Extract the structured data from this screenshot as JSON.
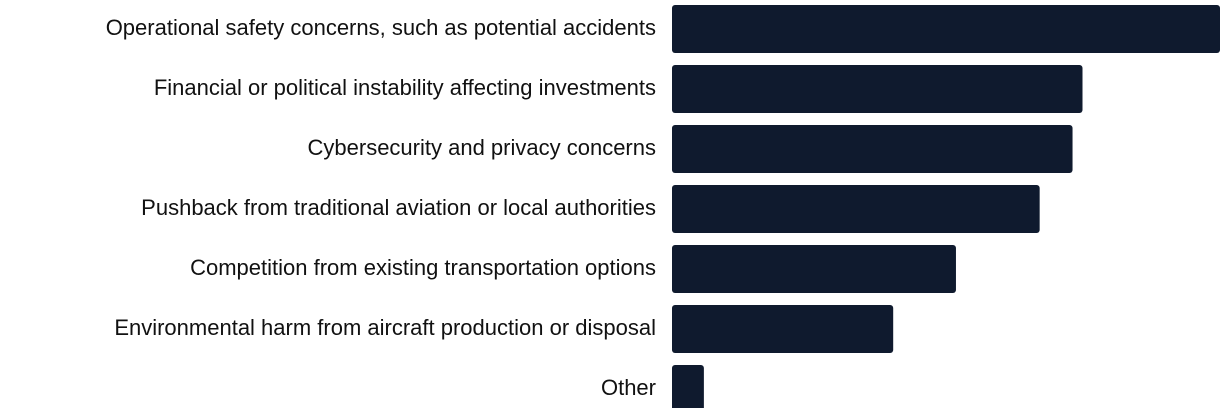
{
  "chart_data": {
    "type": "hbar",
    "categories": [
      "Operational safety concerns, such as potential accidents",
      "Financial or political instability affecting investments",
      "Cybersecurity and privacy concerns",
      "Pushback from traditional aviation or local authorities",
      "Competition from existing transportation options",
      "Environmental harm from aircraft production or disposal",
      "Other"
    ],
    "values": [
      55,
      41.2,
      40.2,
      36.9,
      28.5,
      22.2,
      3.2
    ],
    "color": "#0f1a2e",
    "xlim": [
      0,
      55
    ]
  }
}
